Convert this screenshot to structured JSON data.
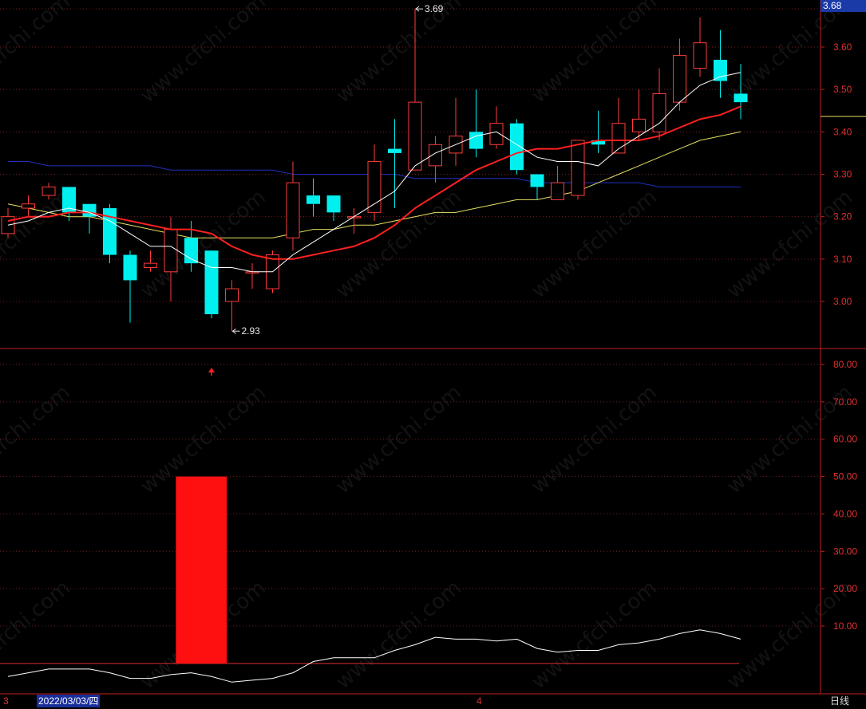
{
  "app": {
    "last_price_tag": "3.68",
    "cursor_date": "2022/03/03/四",
    "period_label": "日线",
    "watermark": "www.cfchi.com",
    "month_labels": [
      "3",
      "4"
    ]
  },
  "colors": {
    "up": "#ff3b3b",
    "down": "#00f0f0",
    "ma5": "#ffffff",
    "ma10": "#ff2020",
    "ma20": "#e8e060",
    "ma60": "#2030c0",
    "grid": "#7a1a1a",
    "axis": "#c02020"
  },
  "chart_data": [
    {
      "type": "candlestick",
      "title": "",
      "y_ticks": [
        "3.60",
        "3.50",
        "3.40",
        "3.30",
        "3.20",
        "3.10",
        "3.00"
      ],
      "ylim": [
        2.89,
        3.7
      ],
      "annotations": [
        {
          "text": "3.69",
          "index": 20,
          "value": 3.69,
          "kind": "high"
        },
        {
          "text": "2.93",
          "index": 11,
          "value": 2.93,
          "kind": "low"
        }
      ],
      "candles": [
        {
          "o": 3.16,
          "h": 3.22,
          "l": 3.15,
          "c": 3.2
        },
        {
          "o": 3.22,
          "h": 3.25,
          "l": 3.2,
          "c": 3.23
        },
        {
          "o": 3.25,
          "h": 3.28,
          "l": 3.24,
          "c": 3.27
        },
        {
          "o": 3.27,
          "h": 3.27,
          "l": 3.19,
          "c": 3.21
        },
        {
          "o": 3.23,
          "h": 3.23,
          "l": 3.16,
          "c": 3.2
        },
        {
          "o": 3.22,
          "h": 3.23,
          "l": 3.09,
          "c": 3.11
        },
        {
          "o": 3.11,
          "h": 3.12,
          "l": 2.95,
          "c": 3.05
        },
        {
          "o": 3.08,
          "h": 3.12,
          "l": 3.07,
          "c": 3.09
        },
        {
          "o": 3.07,
          "h": 3.2,
          "l": 3.0,
          "c": 3.17
        },
        {
          "o": 3.15,
          "h": 3.19,
          "l": 3.07,
          "c": 3.09
        },
        {
          "o": 3.12,
          "h": 3.12,
          "l": 2.96,
          "c": 2.97
        },
        {
          "o": 3.0,
          "h": 3.05,
          "l": 2.93,
          "c": 3.03
        },
        {
          "o": 3.07,
          "h": 3.09,
          "l": 3.03,
          "c": 3.07
        },
        {
          "o": 3.03,
          "h": 3.12,
          "l": 3.02,
          "c": 3.11
        },
        {
          "o": 3.15,
          "h": 3.33,
          "l": 3.12,
          "c": 3.28
        },
        {
          "o": 3.25,
          "h": 3.29,
          "l": 3.2,
          "c": 3.23
        },
        {
          "o": 3.25,
          "h": 3.25,
          "l": 3.19,
          "c": 3.21
        },
        {
          "o": 3.2,
          "h": 3.22,
          "l": 3.16,
          "c": 3.2
        },
        {
          "o": 3.21,
          "h": 3.37,
          "l": 3.19,
          "c": 3.33
        },
        {
          "o": 3.36,
          "h": 3.43,
          "l": 3.22,
          "c": 3.35
        },
        {
          "o": 3.31,
          "h": 3.69,
          "l": 3.31,
          "c": 3.47
        },
        {
          "o": 3.32,
          "h": 3.39,
          "l": 3.28,
          "c": 3.37
        },
        {
          "o": 3.35,
          "h": 3.48,
          "l": 3.32,
          "c": 3.39
        },
        {
          "o": 3.4,
          "h": 3.5,
          "l": 3.34,
          "c": 3.36
        },
        {
          "o": 3.37,
          "h": 3.46,
          "l": 3.36,
          "c": 3.42
        },
        {
          "o": 3.42,
          "h": 3.43,
          "l": 3.3,
          "c": 3.31
        },
        {
          "o": 3.3,
          "h": 3.3,
          "l": 3.24,
          "c": 3.27
        },
        {
          "o": 3.24,
          "h": 3.32,
          "l": 3.24,
          "c": 3.28
        },
        {
          "o": 3.25,
          "h": 3.38,
          "l": 3.24,
          "c": 3.38
        },
        {
          "o": 3.38,
          "h": 3.45,
          "l": 3.35,
          "c": 3.37
        },
        {
          "o": 3.35,
          "h": 3.48,
          "l": 3.35,
          "c": 3.42
        },
        {
          "o": 3.4,
          "h": 3.5,
          "l": 3.38,
          "c": 3.43
        },
        {
          "o": 3.4,
          "h": 3.55,
          "l": 3.38,
          "c": 3.49
        },
        {
          "o": 3.47,
          "h": 3.62,
          "l": 3.45,
          "c": 3.58
        },
        {
          "o": 3.55,
          "h": 3.67,
          "l": 3.53,
          "c": 3.61
        },
        {
          "o": 3.57,
          "h": 3.64,
          "l": 3.48,
          "c": 3.52
        },
        {
          "o": 3.49,
          "h": 3.56,
          "l": 3.43,
          "c": 3.47
        }
      ],
      "ma_lines": [
        {
          "name": "MA5",
          "color_key": "ma5",
          "values": [
            3.18,
            3.19,
            3.21,
            3.22,
            3.21,
            3.19,
            3.16,
            3.13,
            3.13,
            3.1,
            3.08,
            3.08,
            3.07,
            3.07,
            3.11,
            3.14,
            3.17,
            3.2,
            3.23,
            3.26,
            3.32,
            3.35,
            3.37,
            3.39,
            3.4,
            3.37,
            3.34,
            3.33,
            3.33,
            3.32,
            3.36,
            3.39,
            3.42,
            3.47,
            3.51,
            3.53,
            3.54
          ]
        },
        {
          "name": "MA10",
          "color_key": "ma10",
          "values": [
            3.19,
            3.2,
            3.2,
            3.21,
            3.21,
            3.2,
            3.19,
            3.18,
            3.17,
            3.17,
            3.16,
            3.13,
            3.11,
            3.1,
            3.1,
            3.11,
            3.12,
            3.13,
            3.15,
            3.18,
            3.22,
            3.25,
            3.28,
            3.31,
            3.33,
            3.35,
            3.36,
            3.36,
            3.37,
            3.38,
            3.38,
            3.38,
            3.39,
            3.41,
            3.43,
            3.44,
            3.46
          ]
        },
        {
          "name": "MA20",
          "color_key": "ma20",
          "values": [
            3.23,
            3.22,
            3.21,
            3.2,
            3.2,
            3.19,
            3.18,
            3.17,
            3.16,
            3.15,
            3.15,
            3.15,
            3.15,
            3.15,
            3.16,
            3.17,
            3.17,
            3.18,
            3.18,
            3.19,
            3.2,
            3.21,
            3.21,
            3.22,
            3.23,
            3.24,
            3.24,
            3.25,
            3.26,
            3.28,
            3.3,
            3.32,
            3.34,
            3.36,
            3.38,
            3.39,
            3.4
          ]
        },
        {
          "name": "MA60",
          "color_key": "ma60",
          "values": [
            3.33,
            3.33,
            3.32,
            3.32,
            3.32,
            3.32,
            3.32,
            3.32,
            3.31,
            3.31,
            3.31,
            3.31,
            3.31,
            3.31,
            3.3,
            3.3,
            3.3,
            3.3,
            3.3,
            3.3,
            3.29,
            3.29,
            3.29,
            3.29,
            3.29,
            3.29,
            3.28,
            3.28,
            3.28,
            3.28,
            3.28,
            3.28,
            3.27,
            3.27,
            3.27,
            3.27,
            3.27
          ]
        }
      ]
    },
    {
      "type": "bar",
      "title": "",
      "y_ticks": [
        "80.00",
        "70.00",
        "60.00",
        "50.00",
        "40.00",
        "30.00",
        "20.00",
        "10.00"
      ],
      "ylim": [
        -6,
        85
      ],
      "baseline": 0,
      "bars": [
        {
          "index": 9.5,
          "width_bars": 2.5,
          "value": 50
        }
      ],
      "signal_arrow_index": 10,
      "line": {
        "name": "",
        "values": [
          -3.5,
          -2.5,
          -1.5,
          -1.5,
          -1.5,
          -2.5,
          -4,
          -4,
          -3,
          -2.5,
          -3.5,
          -5,
          -4.5,
          -4,
          -2.5,
          0.5,
          1.5,
          1.5,
          1.5,
          3.5,
          5,
          7,
          6.5,
          6.5,
          6,
          6.5,
          4,
          3,
          3.5,
          3.5,
          5,
          5.5,
          6.5,
          8,
          9,
          8,
          6.5
        ]
      }
    }
  ]
}
